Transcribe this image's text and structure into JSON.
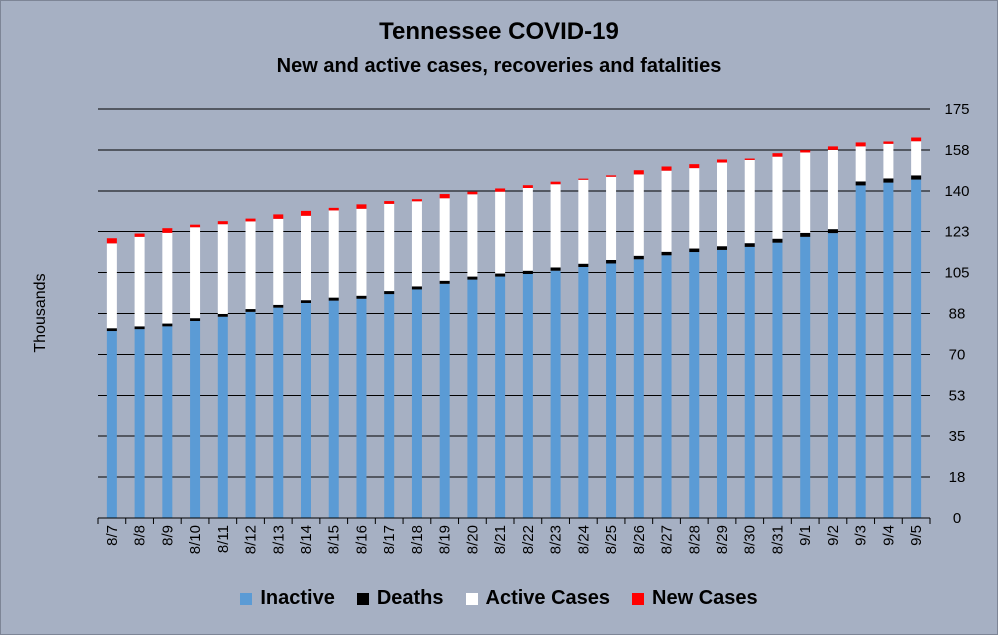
{
  "chart_data": {
    "type": "bar",
    "stacked": true,
    "title": "Tennessee COVID-19",
    "subtitle": "New and active cases, recoveries and fatalities",
    "ylabel": "Thousands",
    "xlabel": "",
    "ylim": [
      0,
      175
    ],
    "yticks": [
      "0",
      "18",
      "35",
      "53",
      "70",
      "88",
      "105",
      "123",
      "140",
      "158",
      "175"
    ],
    "ytick_values": [
      0,
      17.5,
      35,
      52.5,
      70,
      87.5,
      105,
      122.5,
      140,
      157.5,
      175
    ],
    "y_axis_side": "right",
    "grid": true,
    "legend_position": "bottom",
    "categories": [
      "8/7",
      "8/8",
      "8/9",
      "8/10",
      "8/11",
      "8/12",
      "8/13",
      "8/14",
      "8/15",
      "8/16",
      "8/17",
      "8/18",
      "8/19",
      "8/20",
      "8/21",
      "8/22",
      "8/23",
      "8/24",
      "8/25",
      "8/26",
      "8/27",
      "8/28",
      "8/29",
      "8/30",
      "8/31",
      "9/1",
      "9/2",
      "9/3",
      "9/4",
      "9/5"
    ],
    "series": [
      {
        "name": "Inactive",
        "color": "#5b9bd5",
        "values": [
          80.0,
          80.8,
          82.0,
          84.3,
          86.1,
          88.2,
          90.0,
          92.0,
          93.0,
          93.8,
          95.8,
          97.8,
          100.2,
          102.0,
          103.3,
          104.4,
          105.8,
          107.4,
          108.9,
          110.7,
          112.4,
          113.8,
          114.7,
          116.0,
          117.8,
          120.3,
          121.9,
          142.3,
          143.5,
          144.8
        ]
      },
      {
        "name": "Deaths",
        "color": "#000000",
        "values": [
          1.2,
          1.2,
          1.2,
          1.2,
          1.2,
          1.2,
          1.2,
          1.2,
          1.3,
          1.3,
          1.3,
          1.3,
          1.3,
          1.3,
          1.3,
          1.4,
          1.4,
          1.4,
          1.5,
          1.5,
          1.5,
          1.5,
          1.6,
          1.6,
          1.7,
          1.7,
          1.7,
          1.7,
          1.8,
          1.8
        ]
      },
      {
        "name": "Active Cases",
        "color": "#ffffff",
        "values": [
          36.3,
          38.3,
          38.8,
          38.9,
          38.4,
          37.5,
          36.8,
          36.1,
          37.3,
          37.2,
          37.3,
          36.4,
          35.3,
          35.2,
          35.0,
          35.4,
          35.6,
          35.9,
          35.6,
          34.8,
          34.7,
          34.4,
          35.8,
          35.6,
          35.1,
          34.4,
          33.9,
          15.0,
          14.8,
          14.6
        ]
      },
      {
        "name": "New Cases",
        "color": "#ff0000",
        "values": [
          2.2,
          1.4,
          2.0,
          1.1,
          1.3,
          1.2,
          1.9,
          2.1,
          1.1,
          1.9,
          1.2,
          0.9,
          1.8,
          1.1,
          1.4,
          1.2,
          1.1,
          0.5,
          0.6,
          1.8,
          1.8,
          1.7,
          1.3,
          0.6,
          1.5,
          1.0,
          1.5,
          1.7,
          1.0,
          1.6
        ]
      }
    ]
  }
}
